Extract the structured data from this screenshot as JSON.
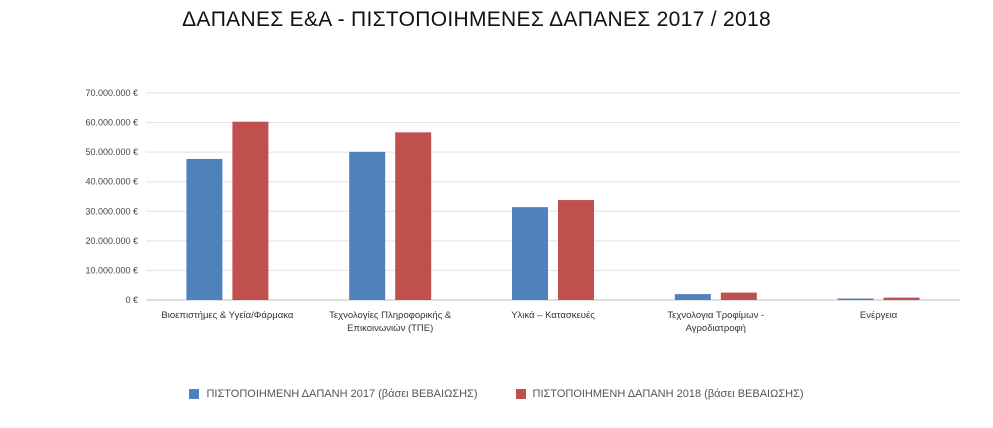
{
  "chart_data": {
    "type": "bar",
    "title": "ΔΑΠΑΝΕΣ Ε&Α - ΠΙΣΤΟΠΟΙΗΜΕΝΕΣ ΔΑΠΑΝΕΣ 2017 / 2018",
    "categories": [
      [
        "Βιοεπιστήμες & Υγεία/Φάρμακα"
      ],
      [
        "Τεχνολογίες Πληροφορικής &",
        "Επικοινωνιών (ΤΠΕ)"
      ],
      [
        "Υλικά – Κατασκευές"
      ],
      [
        "Τεχνολογια Τροφίμων -",
        "Αγροδιατροφή"
      ],
      [
        "Ενέργεια"
      ]
    ],
    "series": [
      {
        "name": "ΠΙΣΤΟΠΟΙΗΜΕΝΗ ΔΑΠΑΝΗ 2017 (βάσει ΒΕΒΑΙΩΣΗΣ)",
        "color": "#4F81BD",
        "values": [
          47700000,
          50100000,
          31400000,
          2000000,
          500000
        ]
      },
      {
        "name": "ΠΙΣΤΟΠΟΙΗΜΕΝΗ ΔΑΠΑΝΗ 2018 (βάσει ΒΕΒΑΙΩΣΗΣ)",
        "color": "#C0504D",
        "values": [
          60300000,
          56700000,
          33800000,
          2500000,
          800000
        ]
      }
    ],
    "yticks": [
      "0 €",
      "10.000.000 €",
      "20.000.000 €",
      "30.000.000 €",
      "40.000.000 €",
      "50.000.000 €",
      "60.000.000 €",
      "70.000.000 €"
    ],
    "ylim": [
      0,
      70000000
    ],
    "grid": true,
    "legend_position": "bottom",
    "xlabel": "",
    "ylabel": ""
  }
}
